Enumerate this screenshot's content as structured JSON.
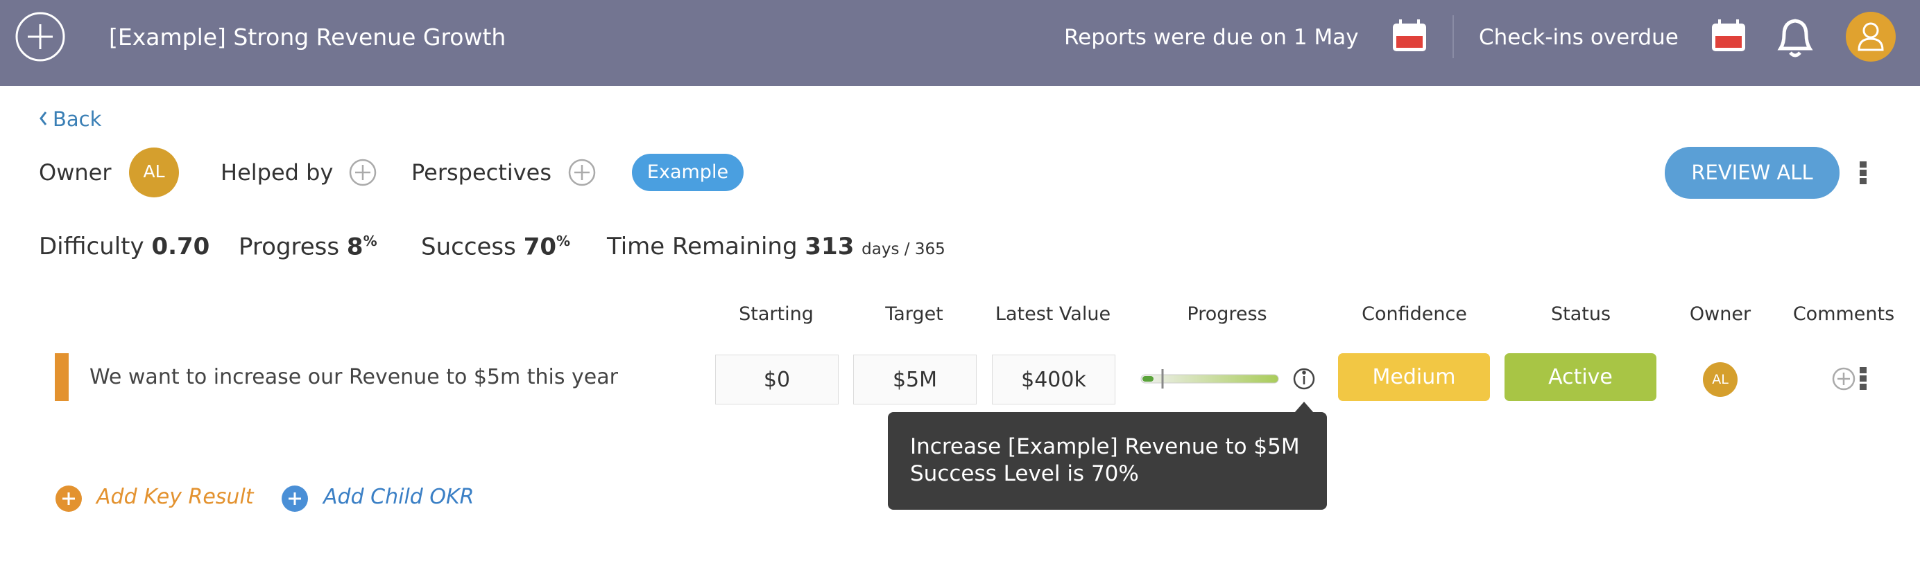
{
  "header": {
    "title": "[Example] Strong Revenue Growth",
    "reports_notice": "Reports were due on 1 May",
    "checkins_notice": "Check-ins overdue"
  },
  "back": "Back",
  "owner": {
    "label": "Owner",
    "initials": "AL"
  },
  "helped_by": "Helped by",
  "perspectives": "Perspectives",
  "tag": "Example",
  "review_all": "REVIEW ALL",
  "stats": {
    "difficulty": {
      "label": "Difficulty",
      "value": "0.70"
    },
    "progress": {
      "label": "Progress",
      "value": "8",
      "unit": "%"
    },
    "success": {
      "label": "Success",
      "value": "70",
      "unit": "%"
    },
    "time_remaining": {
      "label": "Time Remaining",
      "value": "313",
      "unit": "days / 365"
    }
  },
  "table": {
    "columns": [
      "Starting",
      "Target",
      "Latest Value",
      "Progress",
      "Confidence",
      "Status",
      "Owner",
      "Comments"
    ],
    "rows": [
      {
        "name": "We want to increase our Revenue to $5m this year",
        "starting": "$0",
        "target": "$5M",
        "latest": "$400k",
        "confidence": "Medium",
        "status": "Active",
        "owner": "AL"
      }
    ]
  },
  "tooltip": {
    "lines": [
      "Increase [Example] Revenue to $5M",
      "Success Level is 70%"
    ]
  },
  "actions": [
    "Add Key Result",
    "Add Child OKR"
  ]
}
